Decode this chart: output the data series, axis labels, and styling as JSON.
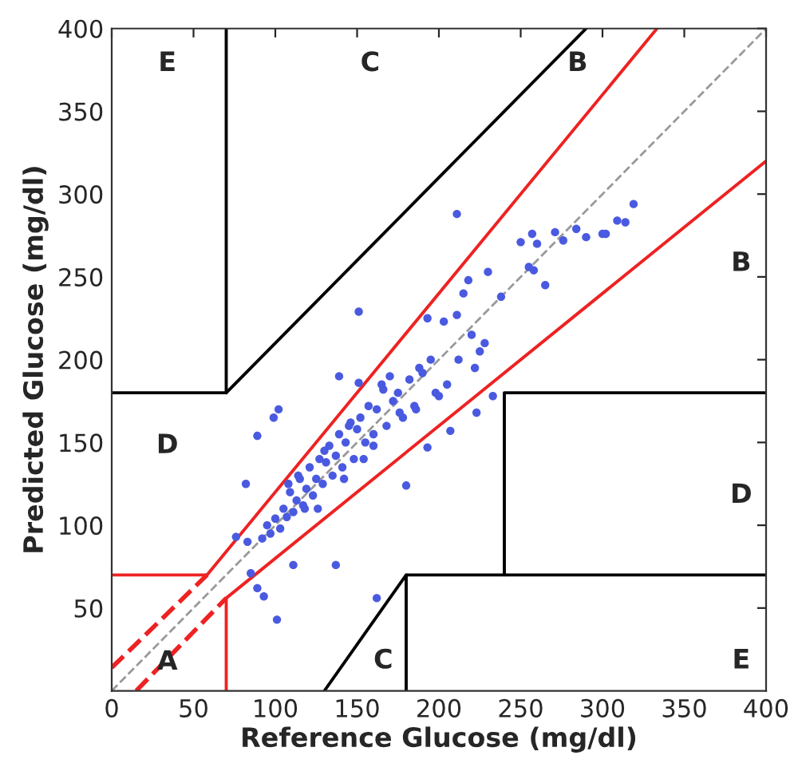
{
  "chart_data": {
    "type": "scatter",
    "xlabel": "Reference Glucose (mg/dl)",
    "ylabel": "Predicted Glucose (mg/dl)",
    "xlim": [
      0,
      400
    ],
    "ylim": [
      0,
      400
    ],
    "xticks": [
      0,
      50,
      100,
      150,
      200,
      250,
      300,
      350,
      400
    ],
    "yticks": [
      50,
      100,
      150,
      200,
      250,
      300,
      350,
      400
    ],
    "grid": false,
    "series": [
      {
        "marker": "circle",
        "color": "#4a5ae0",
        "x": [
          211,
          319,
          309,
          314,
          300,
          302,
          284,
          290,
          276,
          271,
          257,
          250,
          260,
          255,
          258,
          265,
          238,
          230,
          218,
          151,
          233,
          223,
          207,
          193,
          180,
          137,
          111,
          162,
          101,
          93,
          89,
          85,
          76,
          83,
          82,
          89,
          102,
          99,
          139,
          151,
          193,
          203,
          211,
          215,
          220,
          225,
          222,
          228,
          212,
          205,
          198,
          190,
          186,
          182,
          178,
          175,
          172,
          168,
          165,
          162,
          160,
          157,
          155,
          152,
          150,
          148,
          146,
          143,
          141,
          139,
          137,
          135,
          133,
          131,
          129,
          127,
          125,
          123,
          121,
          119,
          117,
          115,
          113,
          111,
          109,
          107,
          105,
          103,
          100,
          97,
          95,
          92,
          170,
          176,
          185,
          195,
          160,
          145,
          130,
          118,
          108,
          188,
          200,
          166,
          154,
          142,
          126,
          114
        ],
        "values": [
          288,
          294,
          284,
          283,
          276,
          276,
          279,
          274,
          272,
          277,
          276,
          271,
          270,
          256,
          254,
          245,
          238,
          253,
          248,
          229,
          178,
          168,
          157,
          147,
          124,
          76,
          76,
          56,
          43,
          57,
          62,
          71,
          93,
          90,
          125,
          154,
          170,
          165,
          190,
          186,
          225,
          223,
          227,
          240,
          215,
          205,
          195,
          210,
          200,
          185,
          180,
          192,
          170,
          188,
          165,
          180,
          175,
          160,
          185,
          170,
          155,
          172,
          150,
          165,
          158,
          140,
          162,
          150,
          135,
          155,
          142,
          130,
          148,
          138,
          125,
          140,
          128,
          118,
          135,
          122,
          112,
          128,
          115,
          108,
          120,
          105,
          110,
          98,
          104,
          95,
          100,
          92,
          190,
          168,
          172,
          200,
          148,
          160,
          145,
          110,
          125,
          195,
          178,
          182,
          140,
          128,
          110,
          130
        ]
      },
      {
        "type": "line",
        "color": "#999999",
        "line_style": "dashed",
        "x": [
          0,
          400
        ],
        "values": [
          0,
          400
        ]
      },
      {
        "type": "line",
        "color": "#000000",
        "line_style": "solid",
        "x": [
          0,
          70,
          70
        ],
        "values": [
          180,
          180,
          400
        ]
      },
      {
        "type": "line",
        "color": "#000000",
        "line_style": "solid",
        "x": [
          70,
          290
        ],
        "values": [
          180,
          400
        ]
      },
      {
        "type": "line",
        "color": "#000000",
        "line_style": "solid",
        "x": [
          240,
          240,
          400
        ],
        "values": [
          70,
          180,
          180
        ]
      },
      {
        "type": "line",
        "color": "#000000",
        "line_style": "solid",
        "x": [
          130,
          180,
          400
        ],
        "values": [
          0,
          70,
          70
        ]
      },
      {
        "type": "line",
        "color": "#000000",
        "line_style": "solid",
        "x": [
          180,
          180
        ],
        "values": [
          0,
          70
        ]
      },
      {
        "type": "line",
        "color": "#ee2222",
        "line_style": "solid",
        "x": [
          0,
          58.3,
          333.3
        ],
        "values": [
          70,
          70,
          400
        ]
      },
      {
        "type": "line",
        "color": "#ee2222",
        "line_style": "solid",
        "x": [
          70,
          70,
          400
        ],
        "values": [
          0,
          56,
          320
        ]
      },
      {
        "type": "line",
        "color": "#ee2222",
        "line_style": "dashed",
        "x": [
          0,
          58.3
        ],
        "values": [
          14,
          70
        ]
      },
      {
        "type": "line",
        "color": "#ee2222",
        "line_style": "dashed",
        "x": [
          15,
          70
        ],
        "values": [
          0,
          56
        ]
      }
    ],
    "annotations": [
      "E",
      "C",
      "B",
      "B",
      "D",
      "D",
      "A",
      "C",
      "E"
    ]
  }
}
